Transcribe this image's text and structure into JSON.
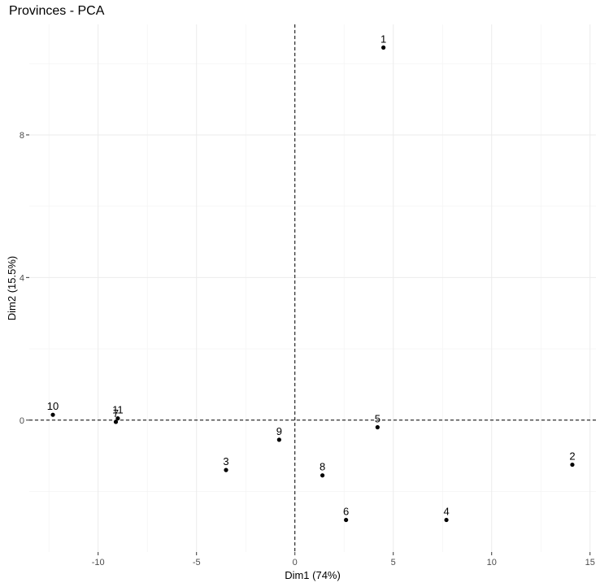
{
  "chart_data": {
    "type": "scatter",
    "title": "Provinces - PCA",
    "xlabel": "Dim1 (74%)",
    "ylabel": "Dim2 (15.5%)",
    "xlim": [
      -13.5,
      15.3
    ],
    "ylim": [
      -3.7,
      11.1
    ],
    "xticks": [
      -10,
      -5,
      0,
      5,
      10,
      15
    ],
    "yticks": [
      0,
      4,
      8
    ],
    "grid": true,
    "reference_lines": {
      "x": 0,
      "y": 0,
      "style": "dashed"
    },
    "points": [
      {
        "label": "1",
        "x": 4.5,
        "y": 10.45
      },
      {
        "label": "2",
        "x": 14.1,
        "y": -1.25
      },
      {
        "label": "3",
        "x": -3.5,
        "y": -1.4
      },
      {
        "label": "4",
        "x": 7.7,
        "y": -2.8
      },
      {
        "label": "5",
        "x": 4.2,
        "y": -0.2
      },
      {
        "label": "6",
        "x": 2.6,
        "y": -2.8
      },
      {
        "label": "7",
        "x": -9.1,
        "y": -0.05
      },
      {
        "label": "8",
        "x": 1.4,
        "y": -1.55
      },
      {
        "label": "9",
        "x": -0.8,
        "y": -0.55
      },
      {
        "label": "10",
        "x": -12.3,
        "y": 0.15
      },
      {
        "label": "11",
        "x": -9.0,
        "y": 0.05
      }
    ]
  }
}
